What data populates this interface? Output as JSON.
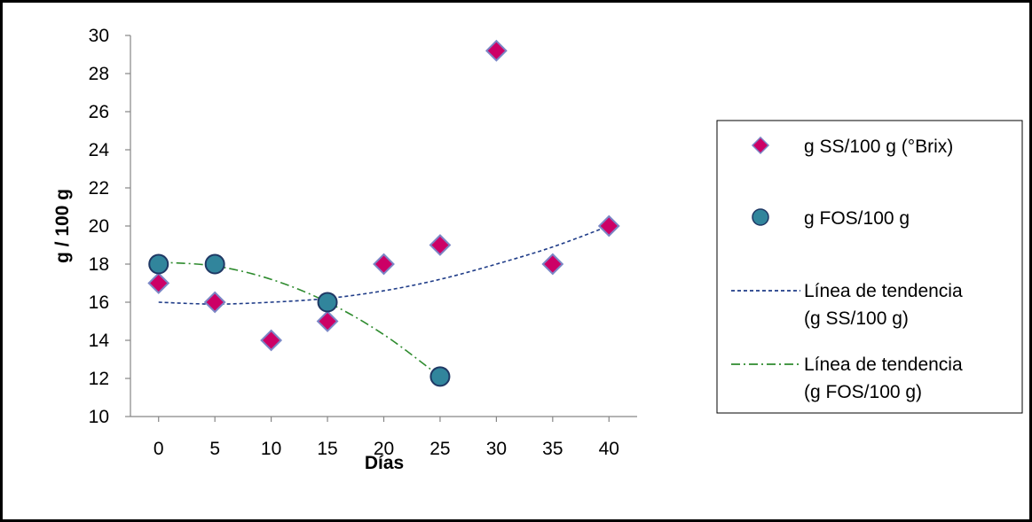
{
  "chart_data": {
    "type": "scatter",
    "xlabel": "Días",
    "ylabel": "g / 100 g",
    "xlim": [
      -2.5,
      42.5
    ],
    "ylim": [
      10,
      30
    ],
    "xticks": [
      0,
      5,
      10,
      15,
      20,
      25,
      30,
      35,
      40
    ],
    "yticks": [
      10,
      12,
      14,
      16,
      18,
      20,
      22,
      24,
      26,
      28,
      30
    ],
    "grid": false,
    "legend_position": "right",
    "series": [
      {
        "name": "g SS/100 g (°Brix)",
        "marker": "diamond",
        "color": "#cc0066",
        "edge_color": "#7b86c6",
        "points": [
          {
            "x": 0,
            "y": 17
          },
          {
            "x": 5,
            "y": 16
          },
          {
            "x": 10,
            "y": 14
          },
          {
            "x": 15,
            "y": 15
          },
          {
            "x": 20,
            "y": 18
          },
          {
            "x": 25,
            "y": 19
          },
          {
            "x": 30,
            "y": 29.2
          },
          {
            "x": 35,
            "y": 18
          },
          {
            "x": 40,
            "y": 20
          }
        ]
      },
      {
        "name": "g FOS/100 g",
        "marker": "circle",
        "color": "#31859c",
        "edge_color": "#1f3864",
        "points": [
          {
            "x": 0,
            "y": 18
          },
          {
            "x": 5,
            "y": 18
          },
          {
            "x": 15,
            "y": 16
          },
          {
            "x": 25,
            "y": 12.1
          }
        ]
      }
    ],
    "trendlines": [
      {
        "name_line1": "Línea de tendencia",
        "name_line2": "(g SS/100 g)",
        "style": "dashed",
        "color": "#1f3c88",
        "fit": "polynomial",
        "points": [
          {
            "x": 0,
            "y": 16.0
          },
          {
            "x": 5,
            "y": 15.9
          },
          {
            "x": 10,
            "y": 16.0
          },
          {
            "x": 15,
            "y": 16.2
          },
          {
            "x": 20,
            "y": 16.6
          },
          {
            "x": 25,
            "y": 17.2
          },
          {
            "x": 30,
            "y": 18.0
          },
          {
            "x": 35,
            "y": 18.9
          },
          {
            "x": 40,
            "y": 20.0
          }
        ]
      },
      {
        "name_line1": "Línea de tendencia",
        "name_line2": "(g FOS/100 g)",
        "style": "dash-dot",
        "color": "#2e8b2e",
        "fit": "polynomial",
        "points": [
          {
            "x": 0,
            "y": 18.1
          },
          {
            "x": 5,
            "y": 17.9
          },
          {
            "x": 10,
            "y": 17.2
          },
          {
            "x": 15,
            "y": 16.0
          },
          {
            "x": 20,
            "y": 14.3
          },
          {
            "x": 25,
            "y": 12.1
          }
        ]
      }
    ]
  }
}
